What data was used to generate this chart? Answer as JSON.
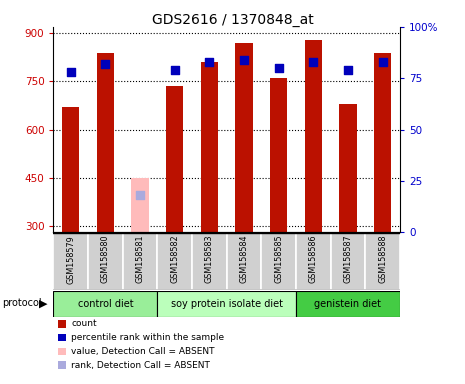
{
  "title": "GDS2616 / 1370848_at",
  "samples": [
    "GSM158579",
    "GSM158580",
    "GSM158581",
    "GSM158582",
    "GSM158583",
    "GSM158584",
    "GSM158585",
    "GSM158586",
    "GSM158587",
    "GSM158588"
  ],
  "counts": [
    670,
    840,
    null,
    735,
    810,
    870,
    760,
    880,
    680,
    840
  ],
  "counts_absent": [
    null,
    null,
    450,
    null,
    null,
    null,
    null,
    null,
    null,
    null
  ],
  "percentile": [
    78,
    82,
    null,
    79,
    83,
    84,
    80,
    83,
    79,
    83
  ],
  "percentile_absent": [
    null,
    null,
    18,
    null,
    null,
    null,
    null,
    null,
    null,
    null
  ],
  "absent": [
    false,
    false,
    true,
    false,
    false,
    false,
    false,
    false,
    false,
    false
  ],
  "groups": [
    {
      "label": "control diet",
      "color": "#99ee99",
      "start": 0,
      "end": 3
    },
    {
      "label": "soy protein isolate diet",
      "color": "#bbffbb",
      "start": 3,
      "end": 7
    },
    {
      "label": "genistein diet",
      "color": "#44cc44",
      "start": 7,
      "end": 10
    }
  ],
  "bar_color_present": "#bb1100",
  "bar_color_absent": "#ffbbbb",
  "dot_color_present": "#0000bb",
  "dot_color_absent": "#aaaadd",
  "ylim_left": [
    280,
    920
  ],
  "ylim_right": [
    0,
    100
  ],
  "yticks_left": [
    300,
    450,
    600,
    750,
    900
  ],
  "yticks_right": [
    0,
    25,
    50,
    75,
    100
  ],
  "grid_y": [
    300,
    450,
    600,
    750,
    900
  ],
  "label_color_left": "#cc0000",
  "label_color_right": "#0000cc",
  "legend_items": [
    {
      "color": "#bb1100",
      "label": "count"
    },
    {
      "color": "#0000bb",
      "label": "percentile rank within the sample"
    },
    {
      "color": "#ffbbbb",
      "label": "value, Detection Call = ABSENT"
    },
    {
      "color": "#aaaadd",
      "label": "rank, Detection Call = ABSENT"
    }
  ]
}
